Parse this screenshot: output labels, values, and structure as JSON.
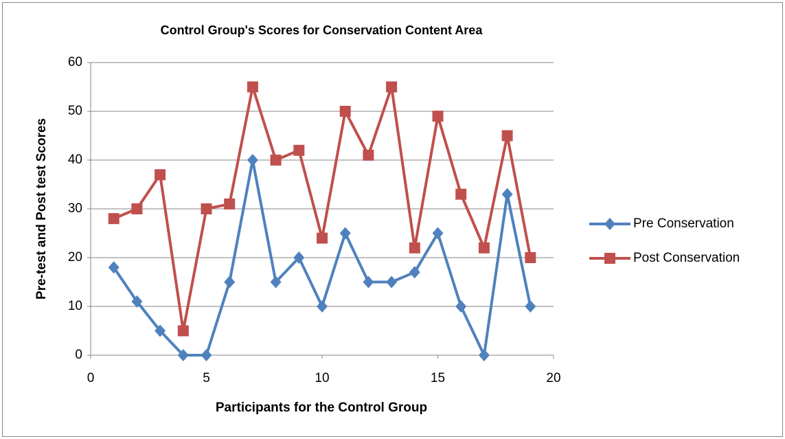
{
  "chart_data": {
    "type": "line",
    "title": "Control Group's Scores for Conservation Content Area",
    "xlabel": "Participants for the Control Group",
    "ylabel": "Pre-test and Post test Scores",
    "x": [
      1,
      2,
      3,
      4,
      5,
      6,
      7,
      8,
      9,
      10,
      11,
      12,
      13,
      14,
      15,
      16,
      17,
      18,
      19
    ],
    "series": [
      {
        "name": "Pre Conservation",
        "color": "#4f81bd",
        "marker": "diamond",
        "values": [
          18,
          11,
          5,
          0,
          0,
          15,
          40,
          15,
          20,
          10,
          25,
          15,
          15,
          17,
          25,
          10,
          0,
          33,
          10
        ]
      },
      {
        "name": "Post Conservation",
        "color": "#c0504d",
        "marker": "square",
        "values": [
          28,
          30,
          37,
          5,
          30,
          31,
          55,
          40,
          42,
          24,
          50,
          41,
          55,
          22,
          49,
          33,
          22,
          45,
          20
        ]
      }
    ],
    "xlim": [
      0,
      20
    ],
    "xticks": [
      0,
      5,
      10,
      15,
      20
    ],
    "ylim": [
      0,
      60
    ],
    "yticks": [
      0,
      10,
      20,
      30,
      40,
      50,
      60
    ],
    "grid": true,
    "legend": "right"
  }
}
